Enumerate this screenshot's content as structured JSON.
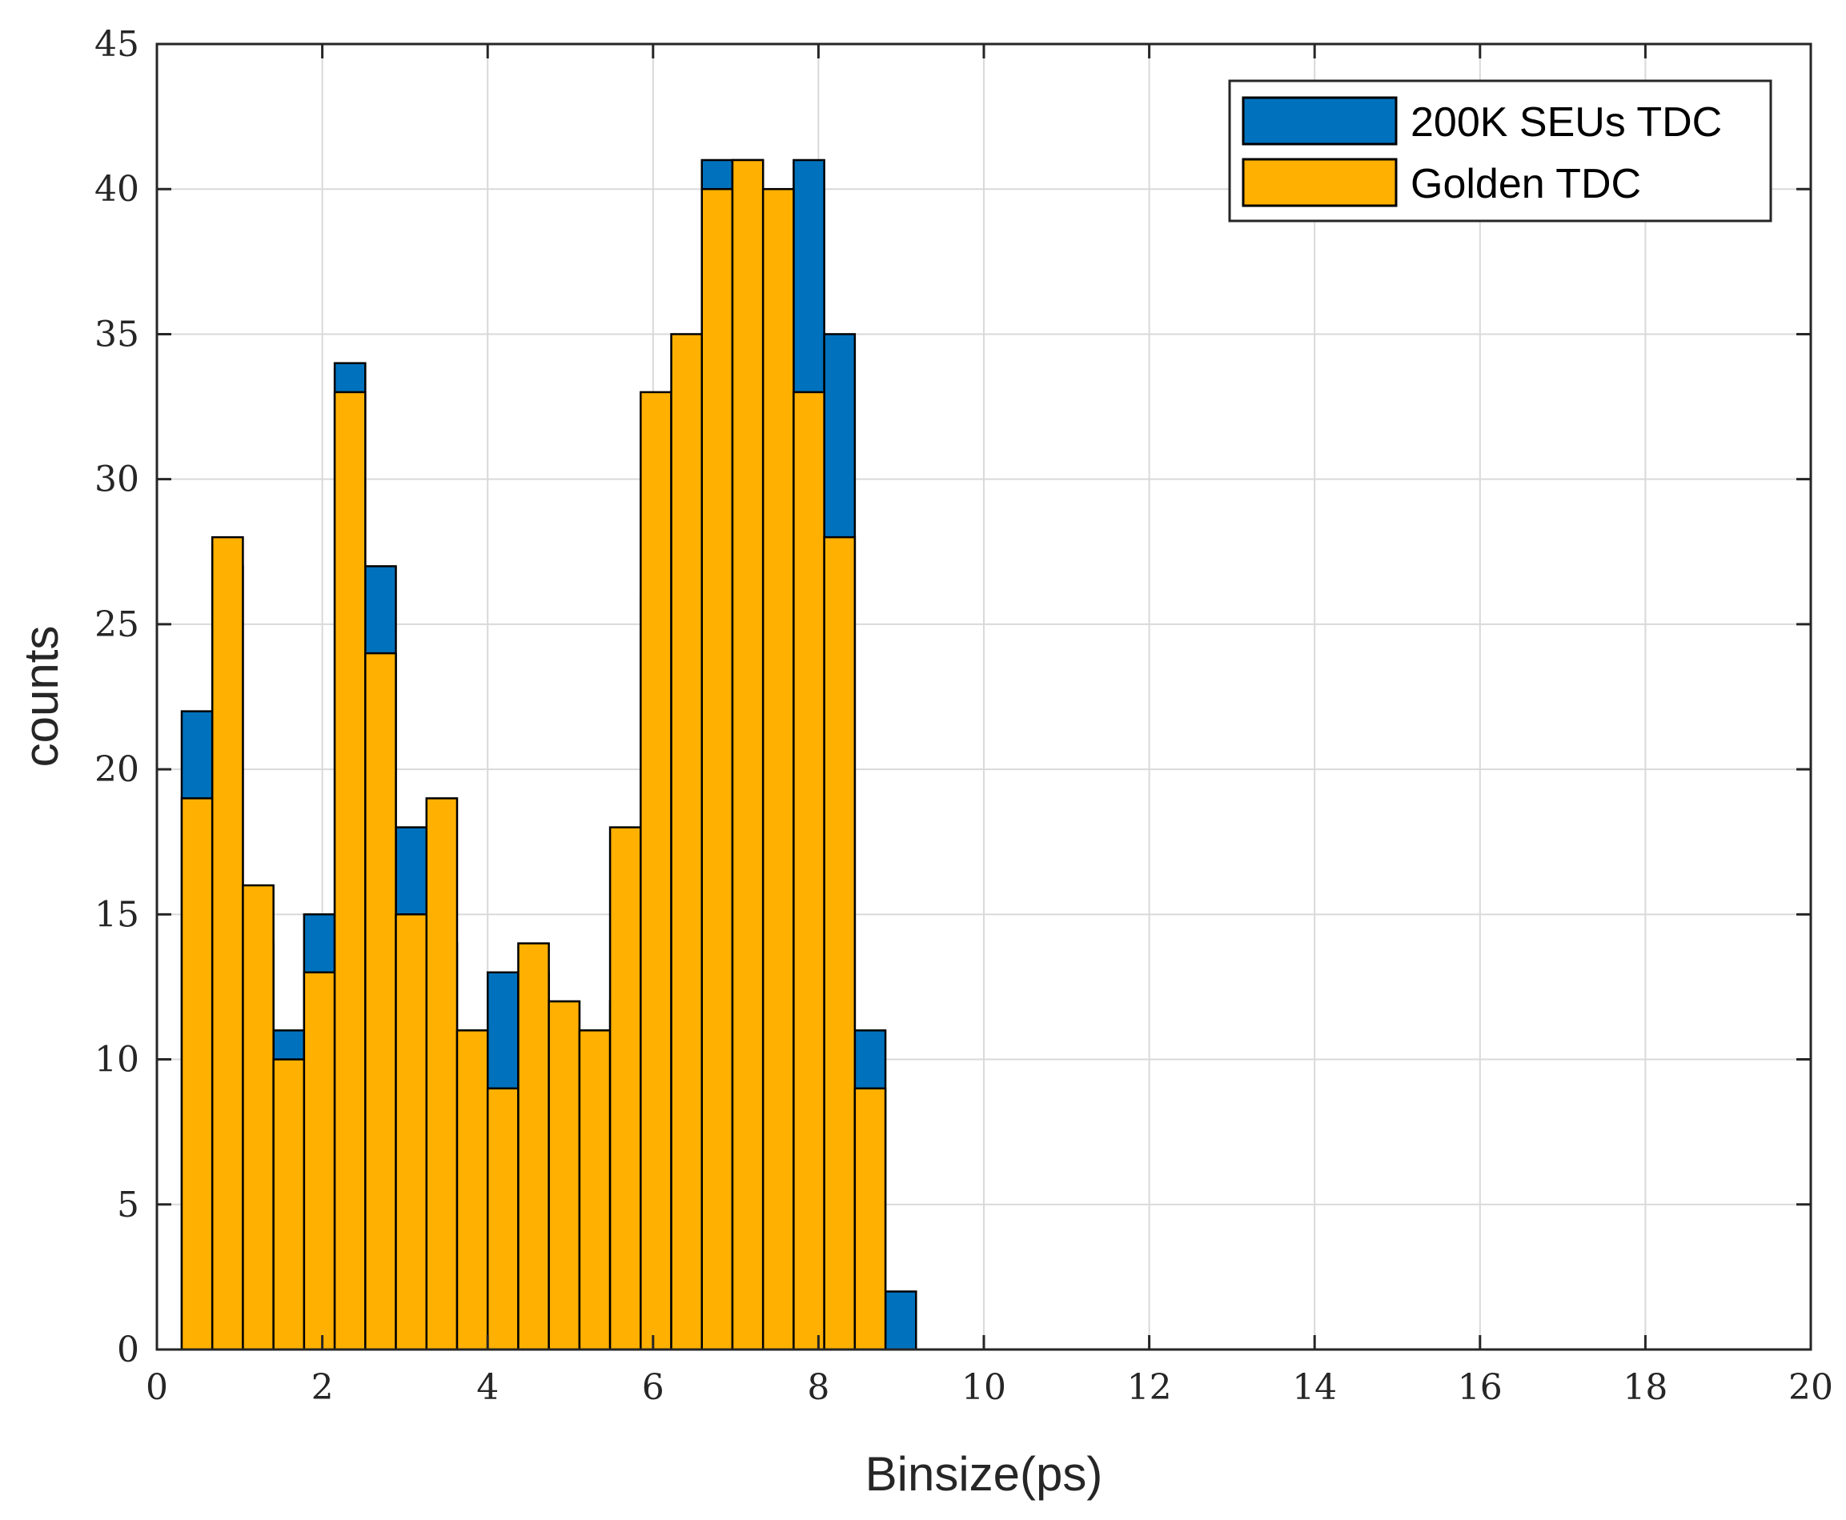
{
  "chart_data": {
    "type": "bar",
    "xlabel": "Binsize(ps)",
    "ylabel": "counts",
    "xlim": [
      0,
      20
    ],
    "ylim": [
      0,
      45
    ],
    "xticks": [
      "0",
      "2",
      "4",
      "6",
      "8",
      "10",
      "12",
      "14",
      "16",
      "18",
      "20"
    ],
    "yticks": [
      "0",
      "5",
      "10",
      "15",
      "20",
      "25",
      "30",
      "35",
      "40",
      "45"
    ],
    "grid": true,
    "legend_position": "top-right",
    "series": [
      {
        "name": "200K SEUs TDC",
        "color": "#0072BD",
        "bin_left": 0.3,
        "bin_width": 0.37,
        "values": [
          22,
          27,
          14,
          11,
          15,
          34,
          27,
          18,
          14,
          11,
          13,
          13,
          12,
          11,
          12,
          26,
          33,
          41,
          41,
          40,
          41,
          35,
          11,
          2
        ]
      },
      {
        "name": "Golden TDC",
        "color": "#FFB000",
        "bin_left": 0.3,
        "bin_width": 0.37,
        "values": [
          19,
          28,
          16,
          10,
          13,
          33,
          24,
          15,
          19,
          11,
          9,
          14,
          12,
          11,
          18,
          33,
          35,
          40,
          41,
          40,
          33,
          28,
          9
        ]
      }
    ]
  }
}
